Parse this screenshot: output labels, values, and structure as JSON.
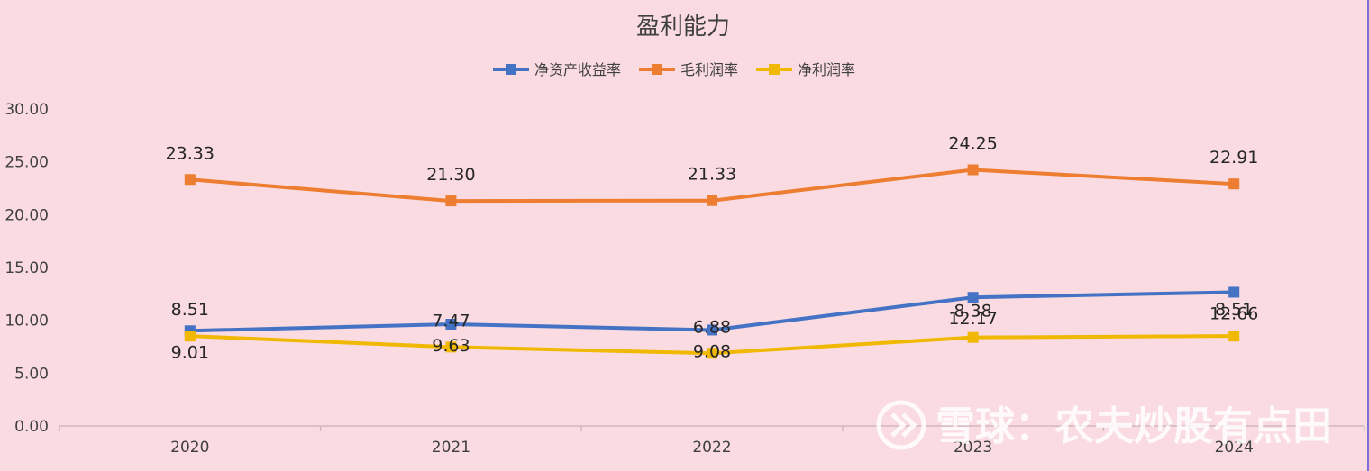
{
  "chart_data": {
    "type": "line",
    "title": "盈利能力",
    "categories": [
      "2020",
      "2021",
      "2022",
      "2023",
      "2024"
    ],
    "ylim": [
      0,
      30
    ],
    "yticks": [
      "0.00",
      "5.00",
      "10.00",
      "15.00",
      "20.00",
      "25.00",
      "30.00"
    ],
    "legend_position": "top",
    "grid": false,
    "series": [
      {
        "name": "净资产收益率",
        "color": "#4472c4",
        "values": [
          9.01,
          9.63,
          9.08,
          12.17,
          12.66
        ],
        "labels": [
          "9.01",
          "9.63",
          "9.08",
          "12.17",
          "12.66"
        ]
      },
      {
        "name": "毛利润率",
        "color": "#ed7d31",
        "values": [
          23.33,
          21.3,
          21.33,
          24.25,
          22.91
        ],
        "labels": [
          "23.33",
          "21.30",
          "21.33",
          "24.25",
          "22.91"
        ]
      },
      {
        "name": "净利润率",
        "color": "#f0b800",
        "values": [
          8.51,
          7.47,
          6.88,
          8.38,
          8.51
        ],
        "labels": [
          "8.51",
          "7.47",
          "6.88",
          "8.38",
          "8.51"
        ]
      }
    ]
  },
  "watermark": {
    "text": "雪球：农夫炒股有点田",
    "icon": "snowball-logo-icon"
  }
}
